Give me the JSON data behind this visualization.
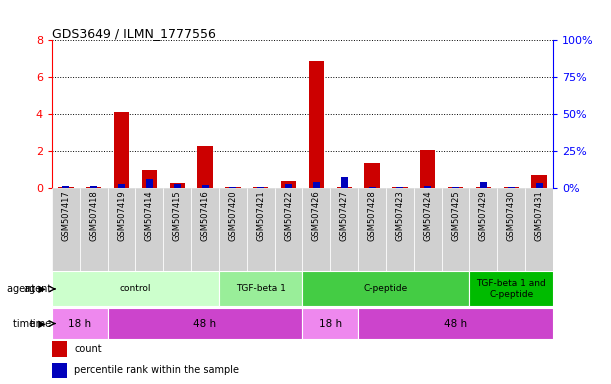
{
  "title": "GDS3649 / ILMN_1777556",
  "samples": [
    "GSM507417",
    "GSM507418",
    "GSM507419",
    "GSM507414",
    "GSM507415",
    "GSM507416",
    "GSM507420",
    "GSM507421",
    "GSM507422",
    "GSM507426",
    "GSM507427",
    "GSM507428",
    "GSM507423",
    "GSM507424",
    "GSM507425",
    "GSM507429",
    "GSM507430",
    "GSM507431"
  ],
  "count_values": [
    0.07,
    0.07,
    4.1,
    1.0,
    0.27,
    2.3,
    0.07,
    0.07,
    0.38,
    6.9,
    0.07,
    1.35,
    0.07,
    2.05,
    0.07,
    0.07,
    0.07,
    0.7
  ],
  "percentile_values": [
    0.1,
    0.1,
    0.22,
    0.5,
    0.2,
    0.15,
    0.07,
    0.07,
    0.2,
    0.33,
    0.58,
    0.08,
    0.07,
    0.12,
    0.07,
    0.33,
    0.07,
    0.28
  ],
  "ylim_left": [
    0,
    8
  ],
  "ylim_right": [
    0,
    100
  ],
  "yticks_left": [
    0,
    2,
    4,
    6,
    8
  ],
  "yticks_right": [
    0,
    25,
    50,
    75,
    100
  ],
  "ytick_labels_right": [
    "0%",
    "25%",
    "50%",
    "75%",
    "100%"
  ],
  "count_color": "#cc0000",
  "percentile_color": "#0000bb",
  "agent_groups": [
    {
      "label": "control",
      "start": 0,
      "end": 5,
      "color": "#ccffcc"
    },
    {
      "label": "TGF-beta 1",
      "start": 6,
      "end": 8,
      "color": "#99ee99"
    },
    {
      "label": "C-peptide",
      "start": 9,
      "end": 14,
      "color": "#44cc44"
    },
    {
      "label": "TGF-beta 1 and\nC-peptide",
      "start": 15,
      "end": 17,
      "color": "#00bb00"
    }
  ],
  "time_groups": [
    {
      "label": "18 h",
      "start": 0,
      "end": 1,
      "color": "#ee88ee"
    },
    {
      "label": "48 h",
      "start": 2,
      "end": 8,
      "color": "#cc44cc"
    },
    {
      "label": "18 h",
      "start": 9,
      "end": 10,
      "color": "#ee88ee"
    },
    {
      "label": "48 h",
      "start": 11,
      "end": 17,
      "color": "#cc44cc"
    }
  ],
  "agent_label": "agent",
  "time_label": "time",
  "legend_count": "count",
  "legend_percentile": "percentile rank within the sample",
  "bar_width": 0.55,
  "pct_bar_width": 0.25,
  "background_color": "#ffffff",
  "tick_bg_color": "#d0d0d0",
  "pct_scale": 0.08
}
